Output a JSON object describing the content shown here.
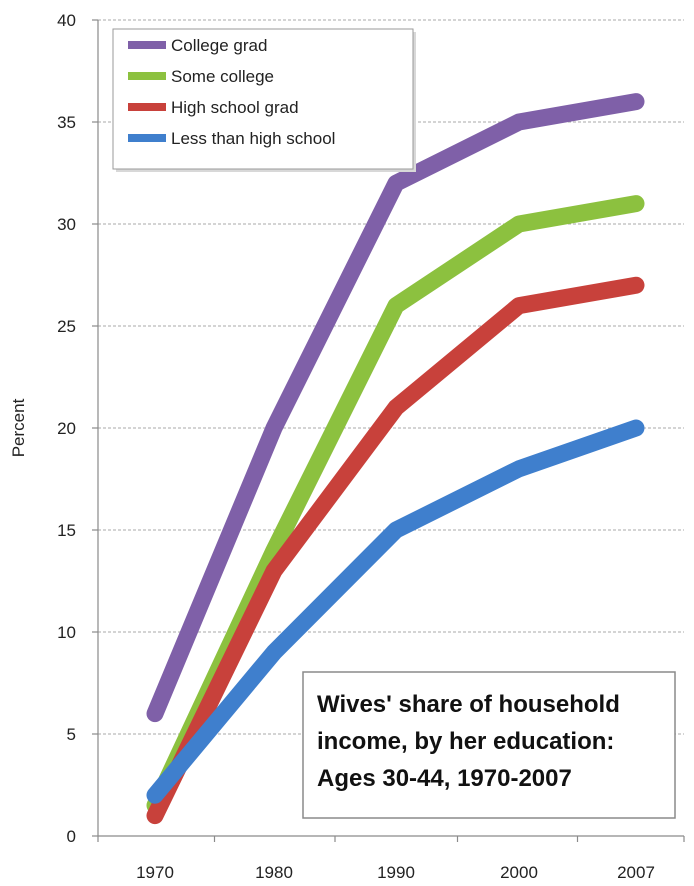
{
  "chart_data": {
    "type": "line",
    "title": "Wives' share of household income, by her education: Ages 30-44, 1970-2007",
    "title_lines": [
      "Wives' share of household",
      "income, by her education:",
      "Ages 30-44, 1970-2007"
    ],
    "xlabel": "",
    "ylabel": "Percent",
    "categories": [
      "1970",
      "1980",
      "1990",
      "2000",
      "2007"
    ],
    "ylim": [
      0,
      40
    ],
    "yticks": [
      0,
      5,
      10,
      15,
      20,
      25,
      30,
      35,
      40
    ],
    "grid": true,
    "legend_position": "top-left",
    "series": [
      {
        "name": "College grad",
        "color": "#7f60a8",
        "values": [
          6,
          20,
          32,
          35,
          36
        ]
      },
      {
        "name": "Some college",
        "color": "#8cc13f",
        "values": [
          1.5,
          14,
          26,
          30,
          31
        ]
      },
      {
        "name": "High school grad",
        "color": "#c8413b",
        "values": [
          1,
          13,
          21,
          26,
          27
        ]
      },
      {
        "name": "Less than high school",
        "color": "#3f7fcd",
        "values": [
          2,
          9,
          15,
          18,
          20
        ]
      }
    ]
  }
}
